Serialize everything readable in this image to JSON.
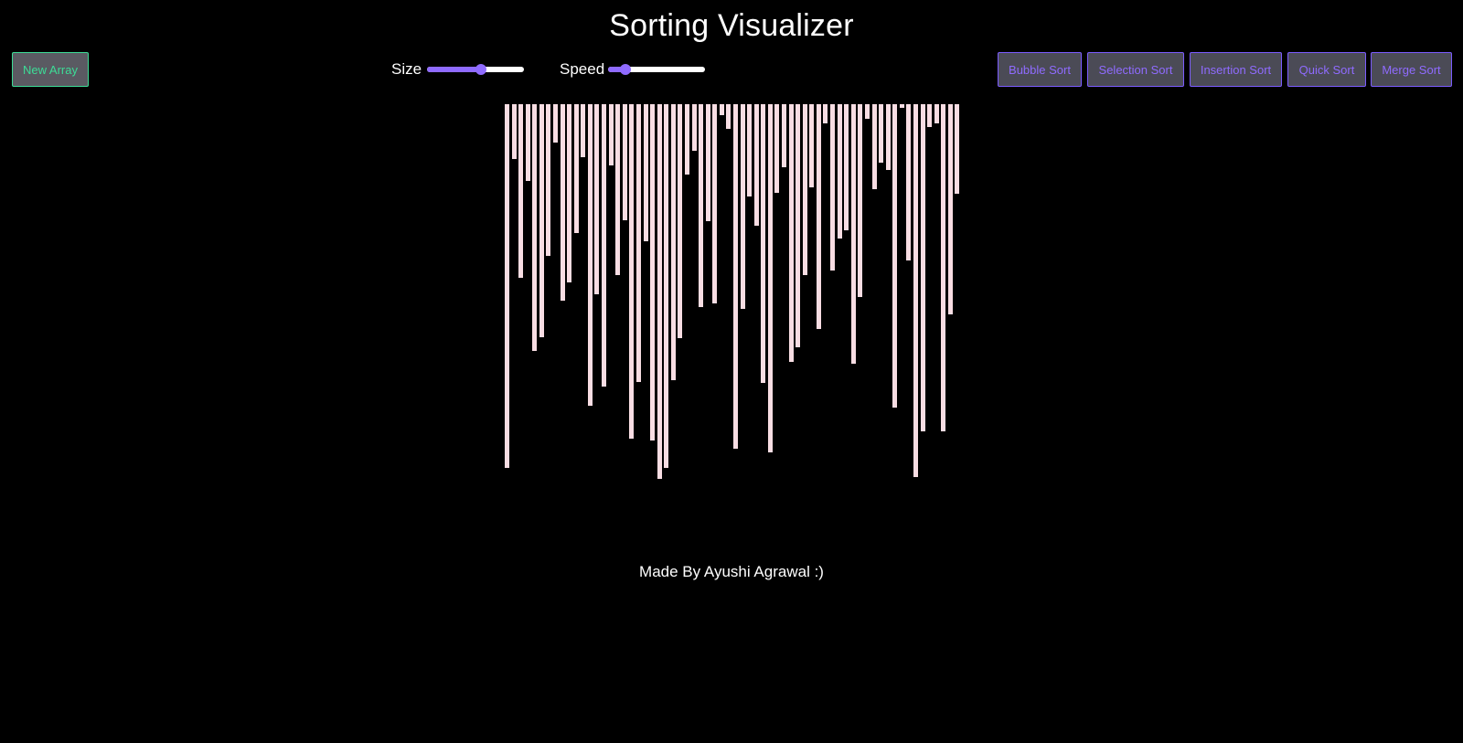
{
  "header": {
    "title": "Sorting Visualizer"
  },
  "toolbar": {
    "new_array_label": "New Array",
    "size_label": "Size",
    "speed_label": "Speed",
    "size_value": 0.56,
    "speed_value": 0.18,
    "algorithms": [
      "Bubble Sort",
      "Selection Sort",
      "Insertion Sort",
      "Quick Sort",
      "Merge Sort"
    ]
  },
  "array": {
    "values": [
      398,
      60,
      190,
      84,
      270,
      255,
      166,
      42,
      215,
      195,
      141,
      58,
      330,
      208,
      309,
      67,
      187,
      127,
      366,
      304,
      150,
      368,
      410,
      398,
      302,
      256,
      77,
      51,
      222,
      128,
      218,
      12,
      27,
      377,
      224,
      101,
      133,
      305,
      381,
      97,
      69,
      282,
      266,
      187,
      91,
      246,
      21,
      182,
      147,
      138,
      284,
      211,
      16,
      93,
      64,
      72,
      332,
      4,
      171,
      408,
      358,
      25,
      21,
      358,
      230,
      98
    ],
    "bar_color": "#f8dde3"
  },
  "footer": {
    "text": "Made By Ayushi Agrawal :)"
  },
  "colors": {
    "background": "#000000",
    "accent": "#8f6bff",
    "new_array_accent": "#3ddc97"
  }
}
